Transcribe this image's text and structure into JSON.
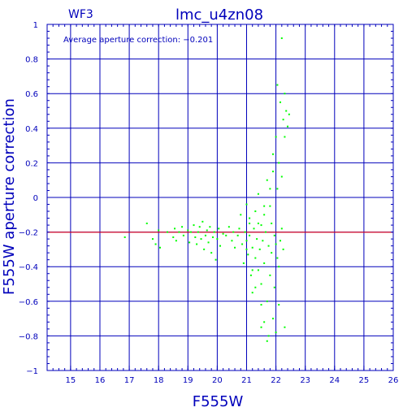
{
  "chart_data": {
    "type": "scatter",
    "title": "lmc_u4zn08",
    "chip_label": "WF3",
    "annotation": "Average aperture correction:  −0.201",
    "xlabel": "F555W",
    "ylabel": "F555W aperture correction",
    "xlim": [
      14.2,
      26
    ],
    "ylim": [
      -1,
      1
    ],
    "x_ticks": [
      15,
      16,
      17,
      18,
      19,
      20,
      21,
      22,
      23,
      24,
      25,
      26
    ],
    "y_ticks": [
      -1,
      -0.8,
      -0.6,
      -0.4,
      -0.2,
      0,
      0.2,
      0.4,
      0.6,
      0.8,
      1
    ],
    "y_tick_labels": [
      "−1",
      "−0.8",
      "−0.6",
      "−0.4",
      "−0.2",
      "0",
      "0.2",
      "0.4",
      "0.6",
      "0.8",
      "1"
    ],
    "grid": true,
    "reference_line": {
      "y": -0.201,
      "color": "#ff0000"
    },
    "colors": {
      "frame": "#0000bb",
      "grid": "#0000bb",
      "text": "#0000bb",
      "points": "#00ff00",
      "reference": "#ff0000"
    },
    "series": [
      {
        "points": [
          [
            16.85,
            -0.23
          ],
          [
            17.6,
            -0.15
          ],
          [
            17.8,
            -0.24
          ],
          [
            17.9,
            -0.27
          ],
          [
            18.0,
            -0.19
          ],
          [
            18.05,
            -0.29
          ],
          [
            18.3,
            -0.2
          ],
          [
            18.5,
            -0.23
          ],
          [
            18.55,
            -0.18
          ],
          [
            18.6,
            -0.25
          ],
          [
            18.7,
            -0.2
          ],
          [
            18.8,
            -0.17
          ],
          [
            18.85,
            -0.22
          ],
          [
            19.0,
            -0.19
          ],
          [
            19.05,
            -0.26
          ],
          [
            19.1,
            -0.2
          ],
          [
            19.2,
            -0.16
          ],
          [
            19.25,
            -0.23
          ],
          [
            19.3,
            -0.27
          ],
          [
            19.35,
            -0.2
          ],
          [
            19.4,
            -0.17
          ],
          [
            19.45,
            -0.24
          ],
          [
            19.5,
            -0.14
          ],
          [
            19.55,
            -0.3
          ],
          [
            19.6,
            -0.22
          ],
          [
            19.65,
            -0.19
          ],
          [
            19.7,
            -0.26
          ],
          [
            19.75,
            -0.17
          ],
          [
            19.8,
            -0.32
          ],
          [
            19.85,
            -0.23
          ],
          [
            19.9,
            -0.2
          ],
          [
            19.95,
            -0.36
          ],
          [
            20.0,
            -0.24
          ],
          [
            20.05,
            -0.18
          ],
          [
            20.1,
            -0.28
          ],
          [
            20.2,
            -0.21
          ],
          [
            20.3,
            -0.22
          ],
          [
            20.4,
            -0.17
          ],
          [
            20.5,
            -0.25
          ],
          [
            20.55,
            -0.2
          ],
          [
            20.6,
            -0.29
          ],
          [
            20.7,
            -0.22
          ],
          [
            20.75,
            -0.18
          ],
          [
            20.8,
            -0.1
          ],
          [
            20.85,
            -0.27
          ],
          [
            20.9,
            -0.38
          ],
          [
            20.95,
            -0.2
          ],
          [
            21.0,
            -0.04
          ],
          [
            21.0,
            -0.25
          ],
          [
            21.05,
            -0.33
          ],
          [
            21.1,
            -0.12
          ],
          [
            21.1,
            -0.22
          ],
          [
            21.15,
            -0.45
          ],
          [
            21.2,
            -0.29
          ],
          [
            21.2,
            -0.55
          ],
          [
            21.25,
            -0.18
          ],
          [
            21.3,
            -0.35
          ],
          [
            21.3,
            -0.08
          ],
          [
            21.35,
            -0.24
          ],
          [
            21.4,
            -0.42
          ],
          [
            21.4,
            0.02
          ],
          [
            21.45,
            -0.3
          ],
          [
            21.5,
            -0.16
          ],
          [
            21.5,
            -0.5
          ],
          [
            21.55,
            -0.25
          ],
          [
            21.6,
            -0.05
          ],
          [
            21.6,
            -0.38
          ],
          [
            21.65,
            -0.2
          ],
          [
            21.7,
            -0.6
          ],
          [
            21.7,
            0.1
          ],
          [
            21.75,
            -0.28
          ],
          [
            21.8,
            -0.45
          ],
          [
            21.8,
            0.05
          ],
          [
            21.85,
            -0.32
          ],
          [
            21.85,
            -0.15
          ],
          [
            21.9,
            -0.7
          ],
          [
            21.9,
            0.25
          ],
          [
            21.95,
            -0.22
          ],
          [
            21.95,
            -0.52
          ],
          [
            22.0,
            -0.27
          ],
          [
            22.0,
            0.35
          ],
          [
            22.0,
            -0.78
          ],
          [
            22.05,
            -0.35
          ],
          [
            22.05,
            0.05
          ],
          [
            22.1,
            -0.4
          ],
          [
            22.1,
            -0.62
          ],
          [
            22.1,
            0.2
          ],
          [
            22.15,
            -0.25
          ],
          [
            22.15,
            0.55
          ],
          [
            22.2,
            -0.18
          ],
          [
            22.2,
            0.12
          ],
          [
            22.25,
            0.45
          ],
          [
            22.25,
            -0.3
          ],
          [
            22.3,
            0.35
          ],
          [
            22.3,
            -0.75
          ],
          [
            22.35,
            0.5
          ],
          [
            22.4,
            0.41
          ],
          [
            22.45,
            0.48
          ],
          [
            22.2,
            0.92
          ],
          [
            22.3,
            0.6
          ],
          [
            22.05,
            0.65
          ],
          [
            21.9,
            0.15
          ],
          [
            21.8,
            -0.05
          ],
          [
            21.6,
            -0.1
          ],
          [
            21.4,
            -0.15
          ],
          [
            21.5,
            -0.62
          ],
          [
            21.6,
            -0.72
          ],
          [
            21.7,
            -0.83
          ],
          [
            21.75,
            -0.8
          ],
          [
            21.5,
            -0.75
          ],
          [
            21.3,
            -0.52
          ],
          [
            21.2,
            -0.42
          ],
          [
            21.0,
            -0.3
          ],
          [
            21.1,
            -0.15
          ]
        ]
      }
    ]
  }
}
